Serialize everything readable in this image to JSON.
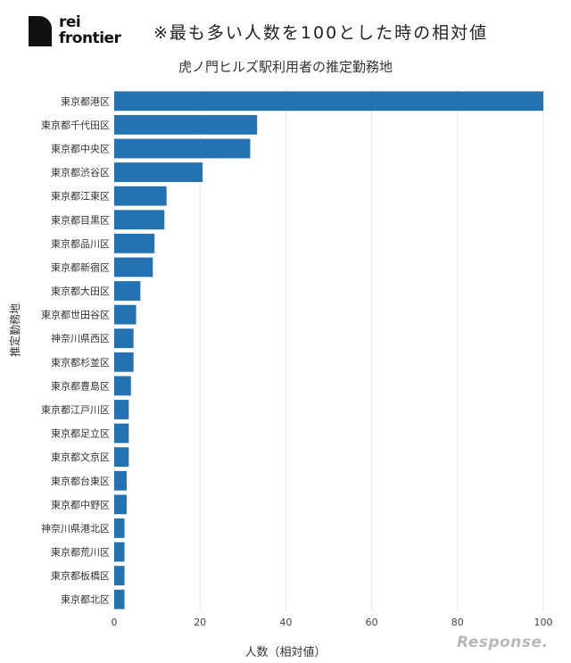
{
  "brand": {
    "logo_line1": "rei",
    "logo_line2": "frontier"
  },
  "note": "※最も多い人数を100とした時の相対値",
  "watermark": "Response.",
  "chart_data": {
    "type": "bar",
    "orientation": "horizontal",
    "title": "虎ノ門ヒルズ駅利用者の推定勤務地",
    "xlabel": "人数（相対値）",
    "ylabel": "推定勤務地",
    "xlim": [
      0,
      100
    ],
    "xticks": [
      0,
      20,
      40,
      60,
      80,
      100
    ],
    "grid": "vertical",
    "bar_color": "#2472b1",
    "categories": [
      "東京都港区",
      "東京都千代田区",
      "東京都中央区",
      "東京都渋谷区",
      "東京都江東区",
      "東京都目黒区",
      "東京都品川区",
      "東京都新宿区",
      "東京都大田区",
      "東京都世田谷区",
      "神奈川県西区",
      "東京都杉並区",
      "東京都豊島区",
      "東京都江戸川区",
      "東京都足立区",
      "東京都文京区",
      "東京都台東区",
      "東京都中野区",
      "神奈川県港北区",
      "東京都荒川区",
      "東京都板橋区",
      "東京都北区"
    ],
    "values": [
      100,
      33.3,
      31.7,
      20.6,
      12.2,
      11.7,
      9.4,
      9.0,
      6.1,
      5.1,
      4.5,
      4.5,
      3.9,
      3.4,
      3.4,
      3.4,
      2.9,
      2.9,
      2.4,
      2.4,
      2.4,
      2.4
    ]
  }
}
